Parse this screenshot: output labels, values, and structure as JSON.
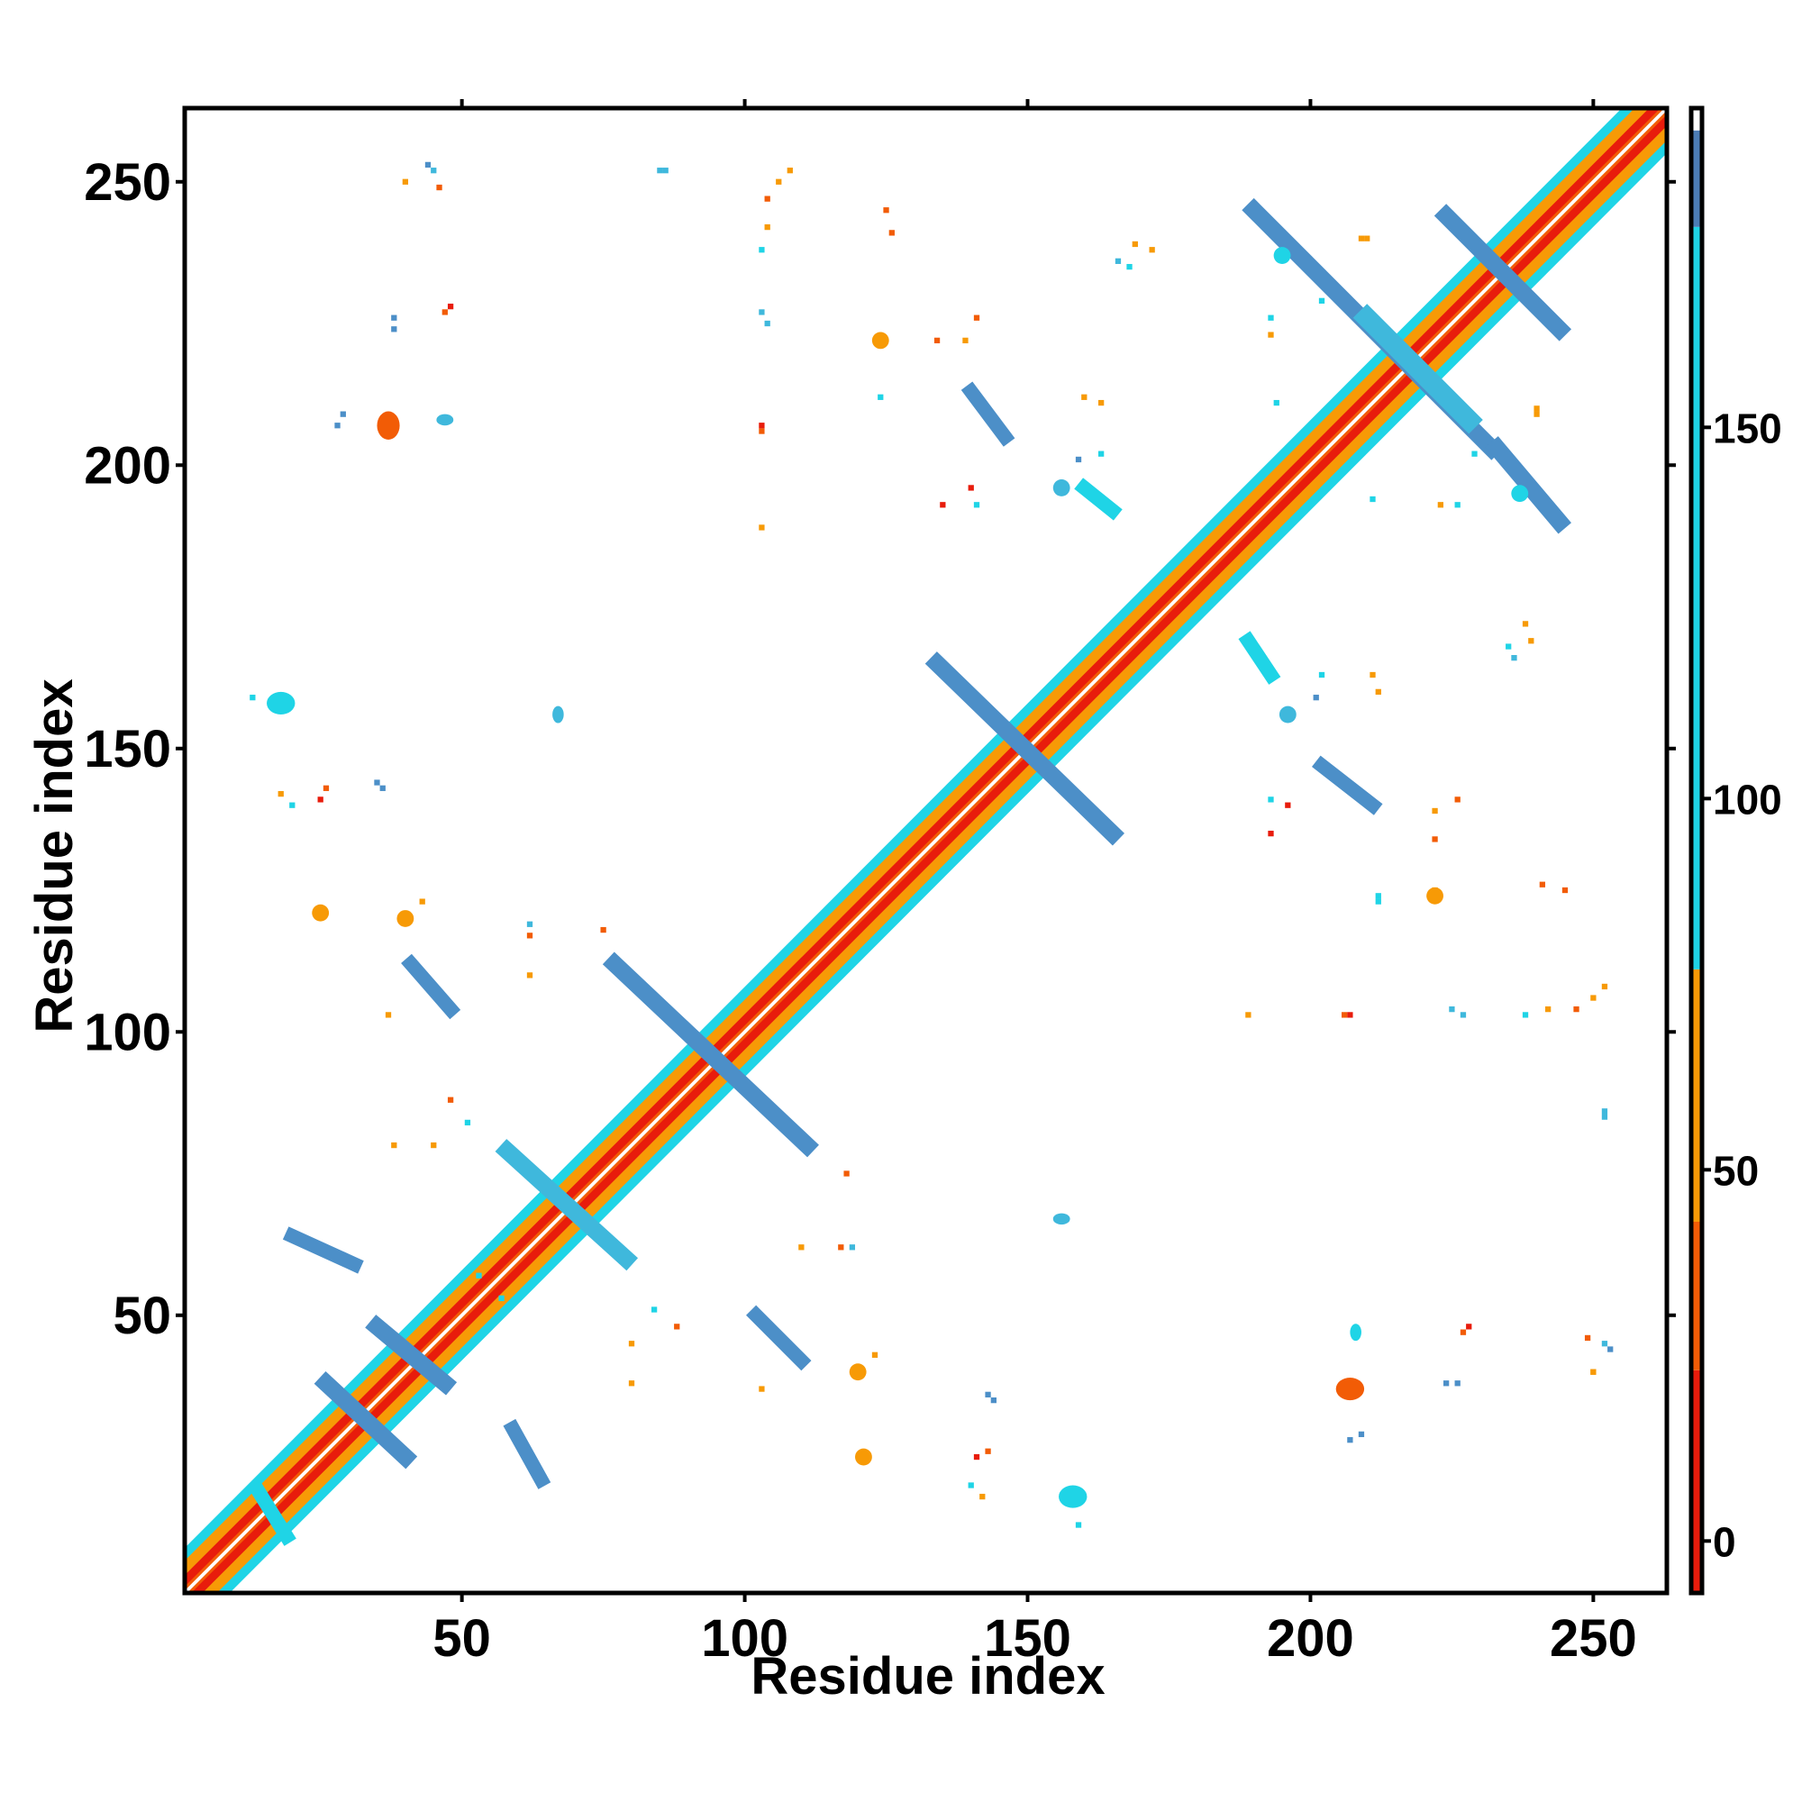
{
  "chart_data": {
    "type": "heatmap",
    "xlabel": "Residue index",
    "ylabel": "Residue index",
    "xlim": [
      1,
      263
    ],
    "ylim": [
      1,
      263
    ],
    "xticks": [
      50,
      100,
      150,
      200,
      250
    ],
    "yticks": [
      50,
      100,
      150,
      200,
      250
    ],
    "colorbar": {
      "ticks": [
        0,
        50,
        100,
        150
      ],
      "range": [
        -7,
        193
      ],
      "bands": [
        {
          "from": -7,
          "to": 23,
          "color": "#e81c0c"
        },
        {
          "from": 23,
          "to": 43,
          "color": "#f25c06"
        },
        {
          "from": 43,
          "to": 77,
          "color": "#f79a06"
        },
        {
          "from": 77,
          "to": 177,
          "color": "#1fd4e6"
        },
        {
          "from": 177,
          "to": 190,
          "color": "#4c7db5"
        },
        {
          "from": 190,
          "to": 193,
          "color": "#ffffff"
        }
      ]
    },
    "diagonal": {
      "from": 1,
      "to": 263
    },
    "features": [
      {
        "kind": "line",
        "x1": 14,
        "y1": 19,
        "x2": 19,
        "y2": 11,
        "w": 2.5,
        "color": "#1fd4e6"
      },
      {
        "kind": "line",
        "x1": 26,
        "y1": 38,
        "x2": 40,
        "y2": 25,
        "w": 3,
        "color": "#4c8fc8"
      },
      {
        "kind": "line",
        "x1": 35,
        "y1": 48,
        "x2": 47,
        "y2": 38,
        "w": 3,
        "color": "#4c8fc8"
      },
      {
        "kind": "line",
        "x1": 20,
        "y1": 64,
        "x2": 31,
        "y2": 59,
        "w": 2.5,
        "color": "#4c8fc8"
      },
      {
        "kind": "line",
        "x1": 58,
        "y1": 79,
        "x2": 79,
        "y2": 60,
        "w": 3,
        "color": "#3fb8dc"
      },
      {
        "kind": "line",
        "x1": 77,
        "y1": 112,
        "x2": 111,
        "y2": 80,
        "w": 3,
        "color": "#4c8fc8"
      },
      {
        "kind": "line",
        "x1": 134,
        "y1": 165,
        "x2": 165,
        "y2": 135,
        "w": 3,
        "color": "#4c8fc8"
      },
      {
        "kind": "line",
        "x1": 190,
        "y1": 245,
        "x2": 232,
        "y2": 203,
        "w": 3,
        "color": "#4c8fc8"
      },
      {
        "kind": "line",
        "x1": 210,
        "y1": 226,
        "x2": 228,
        "y2": 208,
        "w": 3.5,
        "color": "#3fb8dc"
      },
      {
        "kind": "line",
        "x1": 224,
        "y1": 244,
        "x2": 244,
        "y2": 224,
        "w": 3,
        "color": "#4c8fc8"
      },
      {
        "kind": "line",
        "x1": 233,
        "y1": 203,
        "x2": 244,
        "y2": 190,
        "w": 3,
        "color": "#4c8fc8"
      },
      {
        "kind": "line",
        "x1": 59,
        "y1": 30,
        "x2": 64,
        "y2": 21,
        "w": 2.5,
        "color": "#4c8fc8"
      },
      {
        "kind": "line",
        "x1": 102,
        "y1": 50,
        "x2": 110,
        "y2": 42,
        "w": 2.5,
        "color": "#4c8fc8"
      },
      {
        "kind": "line",
        "x1": 41,
        "y1": 112,
        "x2": 48,
        "y2": 104,
        "w": 2.5,
        "color": "#4c8fc8"
      },
      {
        "kind": "line",
        "x1": 140,
        "y1": 213,
        "x2": 146,
        "y2": 205,
        "w": 2.5,
        "color": "#4c8fc8"
      },
      {
        "kind": "line",
        "x1": 202,
        "y1": 147,
        "x2": 211,
        "y2": 140,
        "w": 2.5,
        "color": "#4c8fc8"
      },
      {
        "kind": "line",
        "x1": 160,
        "y1": 196,
        "x2": 165,
        "y2": 192,
        "w": 2.5,
        "color": "#1fd4e6"
      },
      {
        "kind": "line",
        "x1": 189,
        "y1": 169,
        "x2": 193,
        "y2": 163,
        "w": 2.5,
        "color": "#1fd4e6"
      },
      {
        "kind": "blob",
        "x": 18,
        "y": 158,
        "w": 5,
        "h": 4,
        "color": "#1fd4e6"
      },
      {
        "kind": "blob",
        "x": 158,
        "y": 18,
        "w": 5,
        "h": 4,
        "color": "#1fd4e6"
      },
      {
        "kind": "blob",
        "x": 37,
        "y": 207,
        "w": 4,
        "h": 5,
        "color": "#f25c06"
      },
      {
        "kind": "blob",
        "x": 207,
        "y": 37,
        "w": 5,
        "h": 4,
        "color": "#f25c06"
      },
      {
        "kind": "blob",
        "x": 124,
        "y": 222,
        "w": 3,
        "h": 3,
        "color": "#f79a06"
      },
      {
        "kind": "blob",
        "x": 222,
        "y": 124,
        "w": 3,
        "h": 3,
        "color": "#f79a06"
      },
      {
        "kind": "blob",
        "x": 25,
        "y": 121,
        "w": 3,
        "h": 3,
        "color": "#f79a06"
      },
      {
        "kind": "blob",
        "x": 121,
        "y": 25,
        "w": 3,
        "h": 3,
        "color": "#f79a06"
      },
      {
        "kind": "blob",
        "x": 40,
        "y": 120,
        "w": 3,
        "h": 3,
        "color": "#f79a06"
      },
      {
        "kind": "blob",
        "x": 120,
        "y": 40,
        "w": 3,
        "h": 3,
        "color": "#f79a06"
      },
      {
        "kind": "blob",
        "x": 67,
        "y": 156,
        "w": 2,
        "h": 3,
        "color": "#3fb8dc"
      },
      {
        "kind": "blob",
        "x": 156,
        "y": 67,
        "w": 3,
        "h": 2,
        "color": "#3fb8dc"
      },
      {
        "kind": "blob",
        "x": 156,
        "y": 196,
        "w": 3,
        "h": 3,
        "color": "#3fb8dc"
      },
      {
        "kind": "blob",
        "x": 196,
        "y": 156,
        "w": 3,
        "h": 3,
        "color": "#3fb8dc"
      },
      {
        "kind": "blob",
        "x": 195,
        "y": 237,
        "w": 3,
        "h": 3,
        "color": "#1fd4e6"
      },
      {
        "kind": "blob",
        "x": 237,
        "y": 195,
        "w": 3,
        "h": 3,
        "color": "#1fd4e6"
      },
      {
        "kind": "blob",
        "x": 47,
        "y": 208,
        "w": 3,
        "h": 2,
        "color": "#3fb8dc"
      },
      {
        "kind": "blob",
        "x": 208,
        "y": 47,
        "w": 2,
        "h": 3,
        "color": "#1fd4e6"
      },
      {
        "kind": "dot",
        "x": 46,
        "y": 249,
        "color": "#f25c06"
      },
      {
        "kind": "dot",
        "x": 40,
        "y": 250,
        "color": "#f79a06"
      },
      {
        "kind": "dot",
        "x": 44,
        "y": 253,
        "color": "#4c8fc8"
      },
      {
        "kind": "dot",
        "x": 249,
        "y": 46,
        "color": "#f25c06"
      },
      {
        "kind": "dot",
        "x": 250,
        "y": 40,
        "color": "#f79a06"
      },
      {
        "kind": "dot",
        "x": 253,
        "y": 44,
        "color": "#4c8fc8"
      },
      {
        "kind": "dot",
        "x": 86,
        "y": 252,
        "color": "#3fb8dc"
      },
      {
        "kind": "dot",
        "x": 252,
        "y": 86,
        "color": "#3fb8dc"
      },
      {
        "kind": "dot",
        "x": 106,
        "y": 250,
        "color": "#f79a06"
      },
      {
        "kind": "dot",
        "x": 250,
        "y": 106,
        "color": "#f79a06"
      },
      {
        "kind": "dot",
        "x": 104,
        "y": 242,
        "color": "#f79a06"
      },
      {
        "kind": "dot",
        "x": 242,
        "y": 104,
        "color": "#f79a06"
      },
      {
        "kind": "dot",
        "x": 125,
        "y": 245,
        "color": "#f25c06"
      },
      {
        "kind": "dot",
        "x": 245,
        "y": 125,
        "color": "#f25c06"
      },
      {
        "kind": "dot",
        "x": 104,
        "y": 225,
        "color": "#3fb8dc"
      },
      {
        "kind": "dot",
        "x": 225,
        "y": 104,
        "color": "#3fb8dc"
      },
      {
        "kind": "dot",
        "x": 38,
        "y": 224,
        "color": "#4c8fc8"
      },
      {
        "kind": "dot",
        "x": 224,
        "y": 38,
        "color": "#4c8fc8"
      },
      {
        "kind": "dot",
        "x": 47,
        "y": 227,
        "color": "#f25c06"
      },
      {
        "kind": "dot",
        "x": 227,
        "y": 47,
        "color": "#f25c06"
      },
      {
        "kind": "dot",
        "x": 28,
        "y": 207,
        "color": "#4c8fc8"
      },
      {
        "kind": "dot",
        "x": 207,
        "y": 28,
        "color": "#4c8fc8"
      },
      {
        "kind": "dot",
        "x": 103,
        "y": 206,
        "color": "#f25c06"
      },
      {
        "kind": "dot",
        "x": 206,
        "y": 103,
        "color": "#f25c06"
      },
      {
        "kind": "dot",
        "x": 103,
        "y": 189,
        "color": "#f79a06"
      },
      {
        "kind": "dot",
        "x": 189,
        "y": 103,
        "color": "#f79a06"
      },
      {
        "kind": "dot",
        "x": 140,
        "y": 196,
        "color": "#e81c0c"
      },
      {
        "kind": "dot",
        "x": 196,
        "y": 140,
        "color": "#e81c0c"
      },
      {
        "kind": "dot",
        "x": 163,
        "y": 211,
        "color": "#f79a06"
      },
      {
        "kind": "dot",
        "x": 211,
        "y": 163,
        "color": "#f79a06"
      },
      {
        "kind": "dot",
        "x": 163,
        "y": 202,
        "color": "#1fd4e6"
      },
      {
        "kind": "dot",
        "x": 202,
        "y": 163,
        "color": "#1fd4e6"
      },
      {
        "kind": "dot",
        "x": 124,
        "y": 212,
        "color": "#1fd4e6"
      },
      {
        "kind": "dot",
        "x": 212,
        "y": 124,
        "color": "#1fd4e6"
      },
      {
        "kind": "dot",
        "x": 134,
        "y": 222,
        "color": "#f25c06"
      },
      {
        "kind": "dot",
        "x": 222,
        "y": 134,
        "color": "#f25c06"
      },
      {
        "kind": "dot",
        "x": 26,
        "y": 143,
        "color": "#f25c06"
      },
      {
        "kind": "dot",
        "x": 143,
        "y": 26,
        "color": "#f25c06"
      },
      {
        "kind": "dot",
        "x": 35,
        "y": 144,
        "color": "#4c8fc8"
      },
      {
        "kind": "dot",
        "x": 144,
        "y": 35,
        "color": "#4c8fc8"
      },
      {
        "kind": "dot",
        "x": 18,
        "y": 142,
        "color": "#f79a06"
      },
      {
        "kind": "dot",
        "x": 142,
        "y": 18,
        "color": "#f79a06"
      },
      {
        "kind": "dot",
        "x": 62,
        "y": 119,
        "color": "#3fb8dc"
      },
      {
        "kind": "dot",
        "x": 119,
        "y": 62,
        "color": "#3fb8dc"
      },
      {
        "kind": "dot",
        "x": 75,
        "y": 118,
        "color": "#f25c06"
      },
      {
        "kind": "dot",
        "x": 118,
        "y": 75,
        "color": "#f25c06"
      },
      {
        "kind": "dot",
        "x": 62,
        "y": 110,
        "color": "#f79a06"
      },
      {
        "kind": "dot",
        "x": 110,
        "y": 62,
        "color": "#f79a06"
      },
      {
        "kind": "dot",
        "x": 38,
        "y": 80,
        "color": "#f79a06"
      },
      {
        "kind": "dot",
        "x": 80,
        "y": 38,
        "color": "#f79a06"
      },
      {
        "kind": "dot",
        "x": 51,
        "y": 84,
        "color": "#1fd4e6"
      },
      {
        "kind": "dot",
        "x": 84,
        "y": 51,
        "color": "#1fd4e6"
      },
      {
        "kind": "dot",
        "x": 57,
        "y": 53,
        "color": "#1fd4e6"
      },
      {
        "kind": "dot",
        "x": 53,
        "y": 57,
        "color": "#1fd4e6"
      },
      {
        "kind": "dot",
        "x": 80,
        "y": 45,
        "color": "#f79a06"
      },
      {
        "kind": "dot",
        "x": 45,
        "y": 80,
        "color": "#f79a06"
      },
      {
        "kind": "dot",
        "x": 88,
        "y": 48,
        "color": "#f25c06"
      },
      {
        "kind": "dot",
        "x": 48,
        "y": 88,
        "color": "#f25c06"
      },
      {
        "kind": "dot",
        "x": 117,
        "y": 62,
        "color": "#f25c06"
      },
      {
        "kind": "dot",
        "x": 62,
        "y": 117,
        "color": "#f25c06"
      },
      {
        "kind": "dot",
        "x": 123,
        "y": 43,
        "color": "#f79a06"
      },
      {
        "kind": "dot",
        "x": 43,
        "y": 123,
        "color": "#f79a06"
      },
      {
        "kind": "dot",
        "x": 103,
        "y": 37,
        "color": "#f79a06"
      },
      {
        "kind": "dot",
        "x": 37,
        "y": 103,
        "color": "#f79a06"
      },
      {
        "kind": "dot",
        "x": 143,
        "y": 36,
        "color": "#4c8fc8"
      },
      {
        "kind": "dot",
        "x": 36,
        "y": 143,
        "color": "#4c8fc8"
      },
      {
        "kind": "dot",
        "x": 141,
        "y": 25,
        "color": "#e81c0c"
      },
      {
        "kind": "dot",
        "x": 25,
        "y": 141,
        "color": "#e81c0c"
      },
      {
        "kind": "dot",
        "x": 140,
        "y": 20,
        "color": "#1fd4e6"
      },
      {
        "kind": "dot",
        "x": 20,
        "y": 140,
        "color": "#1fd4e6"
      },
      {
        "kind": "dot",
        "x": 159,
        "y": 13,
        "color": "#1fd4e6"
      },
      {
        "kind": "dot",
        "x": 13,
        "y": 159,
        "color": "#1fd4e6"
      },
      {
        "kind": "dot",
        "x": 209,
        "y": 29,
        "color": "#4c8fc8"
      },
      {
        "kind": "dot",
        "x": 29,
        "y": 209,
        "color": "#4c8fc8"
      },
      {
        "kind": "dot",
        "x": 228,
        "y": 48,
        "color": "#e81c0c"
      },
      {
        "kind": "dot",
        "x": 48,
        "y": 228,
        "color": "#e81c0c"
      },
      {
        "kind": "dot",
        "x": 226,
        "y": 38,
        "color": "#4c8fc8"
      },
      {
        "kind": "dot",
        "x": 38,
        "y": 226,
        "color": "#4c8fc8"
      },
      {
        "kind": "dot",
        "x": 250,
        "y": 40,
        "color": "#f79a06"
      },
      {
        "kind": "dot",
        "x": 252,
        "y": 45,
        "color": "#3fb8dc"
      },
      {
        "kind": "dot",
        "x": 45,
        "y": 252,
        "color": "#3fb8dc"
      },
      {
        "kind": "dot",
        "x": 252,
        "y": 85,
        "color": "#3fb8dc"
      },
      {
        "kind": "dot",
        "x": 85,
        "y": 252,
        "color": "#3fb8dc"
      },
      {
        "kind": "dot",
        "x": 247,
        "y": 104,
        "color": "#f25c06"
      },
      {
        "kind": "dot",
        "x": 104,
        "y": 247,
        "color": "#f25c06"
      },
      {
        "kind": "dot",
        "x": 252,
        "y": 108,
        "color": "#f79a06"
      },
      {
        "kind": "dot",
        "x": 108,
        "y": 252,
        "color": "#f79a06"
      },
      {
        "kind": "dot",
        "x": 238,
        "y": 103,
        "color": "#1fd4e6"
      },
      {
        "kind": "dot",
        "x": 103,
        "y": 238,
        "color": "#1fd4e6"
      },
      {
        "kind": "dot",
        "x": 207,
        "y": 103,
        "color": "#e81c0c"
      },
      {
        "kind": "dot",
        "x": 103,
        "y": 207,
        "color": "#e81c0c"
      },
      {
        "kind": "dot",
        "x": 227,
        "y": 103,
        "color": "#3fb8dc"
      },
      {
        "kind": "dot",
        "x": 103,
        "y": 227,
        "color": "#3fb8dc"
      },
      {
        "kind": "dot",
        "x": 241,
        "y": 126,
        "color": "#f25c06"
      },
      {
        "kind": "dot",
        "x": 126,
        "y": 241,
        "color": "#f25c06"
      },
      {
        "kind": "dot",
        "x": 222,
        "y": 125,
        "color": "#f79a06"
      },
      {
        "kind": "dot",
        "x": 212,
        "y": 123,
        "color": "#1fd4e6"
      },
      {
        "kind": "dot",
        "x": 193,
        "y": 135,
        "color": "#e81c0c"
      },
      {
        "kind": "dot",
        "x": 135,
        "y": 193,
        "color": "#e81c0c"
      },
      {
        "kind": "dot",
        "x": 193,
        "y": 141,
        "color": "#1fd4e6"
      },
      {
        "kind": "dot",
        "x": 141,
        "y": 193,
        "color": "#1fd4e6"
      },
      {
        "kind": "dot",
        "x": 226,
        "y": 141,
        "color": "#f25c06"
      },
      {
        "kind": "dot",
        "x": 141,
        "y": 226,
        "color": "#f25c06"
      },
      {
        "kind": "dot",
        "x": 222,
        "y": 139,
        "color": "#f79a06"
      },
      {
        "kind": "dot",
        "x": 139,
        "y": 222,
        "color": "#f79a06"
      },
      {
        "kind": "dot",
        "x": 212,
        "y": 160,
        "color": "#f79a06"
      },
      {
        "kind": "dot",
        "x": 160,
        "y": 212,
        "color": "#f79a06"
      },
      {
        "kind": "dot",
        "x": 201,
        "y": 159,
        "color": "#4c8fc8"
      },
      {
        "kind": "dot",
        "x": 159,
        "y": 201,
        "color": "#4c8fc8"
      },
      {
        "kind": "dot",
        "x": 239,
        "y": 169,
        "color": "#f79a06"
      },
      {
        "kind": "dot",
        "x": 169,
        "y": 239,
        "color": "#f79a06"
      },
      {
        "kind": "dot",
        "x": 235,
        "y": 168,
        "color": "#1fd4e6"
      },
      {
        "kind": "dot",
        "x": 168,
        "y": 235,
        "color": "#1fd4e6"
      },
      {
        "kind": "dot",
        "x": 211,
        "y": 194,
        "color": "#1fd4e6"
      },
      {
        "kind": "dot",
        "x": 194,
        "y": 211,
        "color": "#1fd4e6"
      },
      {
        "kind": "dot",
        "x": 226,
        "y": 193,
        "color": "#1fd4e6"
      },
      {
        "kind": "dot",
        "x": 193,
        "y": 226,
        "color": "#1fd4e6"
      },
      {
        "kind": "dot",
        "x": 240,
        "y": 210,
        "color": "#f79a06"
      },
      {
        "kind": "dot",
        "x": 210,
        "y": 240,
        "color": "#f79a06"
      },
      {
        "kind": "dot",
        "x": 229,
        "y": 202,
        "color": "#1fd4e6"
      },
      {
        "kind": "dot",
        "x": 202,
        "y": 229,
        "color": "#1fd4e6"
      },
      {
        "kind": "dot",
        "x": 193,
        "y": 223,
        "color": "#f79a06"
      },
      {
        "kind": "dot",
        "x": 223,
        "y": 193,
        "color": "#f79a06"
      },
      {
        "kind": "dot",
        "x": 209,
        "y": 240,
        "color": "#f79a06"
      },
      {
        "kind": "dot",
        "x": 240,
        "y": 209,
        "color": "#f79a06"
      },
      {
        "kind": "dot",
        "x": 172,
        "y": 238,
        "color": "#f79a06"
      },
      {
        "kind": "dot",
        "x": 238,
        "y": 172,
        "color": "#f79a06"
      },
      {
        "kind": "dot",
        "x": 166,
        "y": 236,
        "color": "#3fb8dc"
      },
      {
        "kind": "dot",
        "x": 236,
        "y": 166,
        "color": "#3fb8dc"
      }
    ]
  }
}
